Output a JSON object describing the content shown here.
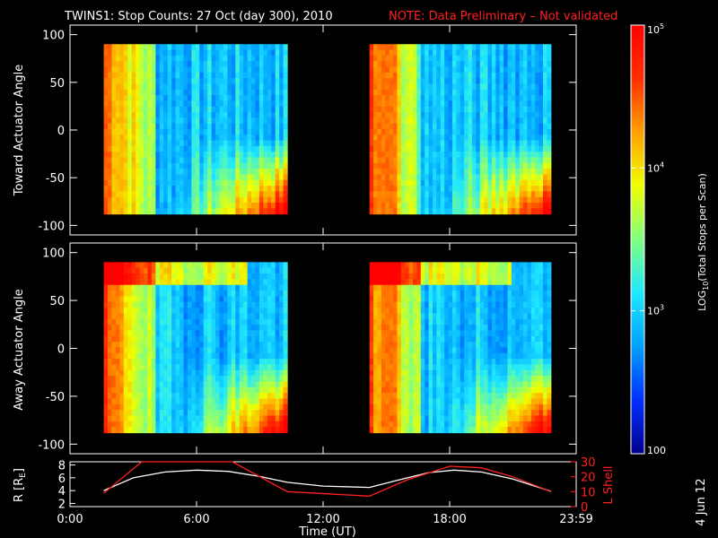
{
  "header": {
    "title": "TWINS1: Stop Counts: 27 Oct (day 300), 2010",
    "note": "NOTE: Data Preliminary – Not validated",
    "note_color": "#ff2020"
  },
  "footer": {
    "date_stamp": "4 Jun 12"
  },
  "chart_data": [
    {
      "type": "heatmap",
      "name": "toward",
      "ylabel": "Toward Actuator Angle",
      "ylim": [
        -110,
        110
      ],
      "yticks": [
        100,
        50,
        0,
        -50,
        -100
      ],
      "xlim": [
        0,
        24
      ],
      "data_intervals_ut": [
        [
          1.6,
          10.3
        ],
        [
          14.2,
          22.8
        ]
      ],
      "angle_range": [
        -88,
        90
      ]
    },
    {
      "type": "heatmap",
      "name": "away",
      "ylabel": "Away Actuator Angle",
      "ylim": [
        -110,
        110
      ],
      "yticks": [
        100,
        50,
        0,
        -50,
        -100
      ],
      "xlim": [
        0,
        24
      ],
      "data_intervals_ut": [
        [
          1.6,
          10.3
        ],
        [
          14.2,
          22.8
        ]
      ],
      "angle_range": [
        -88,
        90
      ]
    },
    {
      "type": "line",
      "name": "orbit",
      "xlabel": "Time (UT)",
      "xlim": [
        0,
        24
      ],
      "xtick_labels": [
        "0:00",
        "6:00",
        "12:00",
        "18:00",
        "23:59"
      ],
      "xtick_values": [
        0,
        6,
        12,
        18,
        24
      ],
      "ylabel_left": "R [Rₑ]",
      "ylabel_left_base": "R [R",
      "ylabel_left_sub": "E",
      "ylabel_left_tail": "]",
      "ylim_left": [
        1.5,
        8.5
      ],
      "yticks_left": [
        2,
        4,
        6,
        8
      ],
      "ylabel_right": "L Shell",
      "ylim_right": [
        0,
        30
      ],
      "yticks_right": [
        0,
        10,
        20,
        30
      ],
      "series": [
        {
          "name": "R [RE]",
          "color": "#ffffff",
          "x": [
            1.6,
            3,
            4.5,
            6,
            7.5,
            9,
            10.3,
            12,
            14.2,
            15.5,
            17,
            18.2,
            19.5,
            21,
            22.8
          ],
          "y": [
            4.0,
            6.0,
            6.9,
            7.2,
            7.0,
            6.2,
            5.3,
            4.7,
            4.5,
            5.6,
            6.8,
            7.2,
            6.9,
            5.8,
            3.9
          ]
        },
        {
          "name": "L Shell",
          "color": "#ff2020",
          "x": [
            1.6,
            3.4,
            7.7,
            10.3,
            14.2,
            16,
            18,
            19.5,
            21,
            22.8
          ],
          "y": [
            9,
            30,
            30,
            10,
            7,
            18,
            27,
            26,
            20,
            10
          ]
        }
      ]
    }
  ],
  "colorbar": {
    "label": "LOG₁₀(Total Stops per Scan)",
    "label_base": "LOG",
    "label_sub": "10",
    "label_tail": "(Total Stops per Scan)",
    "range": [
      100,
      100000
    ],
    "ticks": [
      {
        "value": 100000,
        "label": "10",
        "sup": "5"
      },
      {
        "value": 10000,
        "label": "10",
        "sup": "4"
      },
      {
        "value": 1000,
        "label": "10",
        "sup": "3"
      },
      {
        "value": 100,
        "label": "100",
        "sup": ""
      }
    ],
    "colors": [
      "#00008f",
      "#0030ff",
      "#00a0ff",
      "#20e8ff",
      "#80ff80",
      "#f0ff00",
      "#ffa000",
      "#ff3000",
      "#ff0000"
    ]
  }
}
